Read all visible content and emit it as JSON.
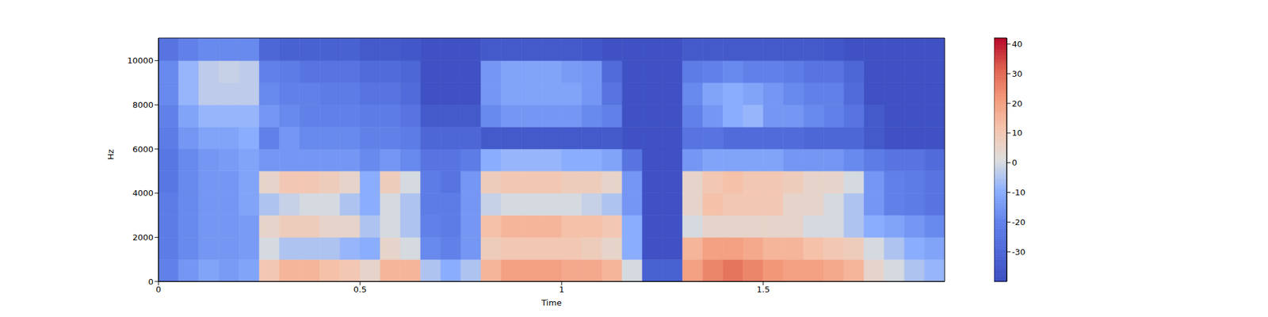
{
  "chart_data": {
    "type": "heatmap",
    "xlabel": "Time",
    "ylabel": "Hz",
    "xlim": [
      0,
      1.95
    ],
    "xticks": [
      0,
      0.5,
      1,
      1.5
    ],
    "ylim": [
      0,
      11025
    ],
    "yticks": [
      0,
      2000,
      4000,
      6000,
      8000,
      10000
    ],
    "time_edges": [
      0,
      0.05,
      0.1,
      0.15,
      0.2,
      0.25,
      0.3,
      0.35,
      0.4,
      0.45,
      0.5,
      0.55,
      0.6,
      0.65,
      0.7,
      0.75,
      0.8,
      0.85,
      0.9,
      0.95,
      1.0,
      1.05,
      1.1,
      1.15,
      1.2,
      1.25,
      1.3,
      1.35,
      1.4,
      1.45,
      1.5,
      1.55,
      1.6,
      1.65,
      1.7,
      1.75,
      1.8,
      1.85,
      1.9,
      1.95
    ],
    "freq_edges": [
      0,
      1000,
      2000,
      3000,
      4000,
      5000,
      6000,
      7000,
      8000,
      9000,
      10000,
      11025
    ],
    "cells": [
      [
        -20,
        -22,
        -22,
        -22,
        -24,
        -24,
        -22,
        -20,
        -18,
        -18,
        -25
      ],
      [
        -15,
        -18,
        -18,
        -18,
        -18,
        -18,
        -15,
        -12,
        -8,
        -8,
        -20
      ],
      [
        -12,
        -15,
        -15,
        -15,
        -15,
        -15,
        -12,
        -8,
        -3,
        -3,
        -18
      ],
      [
        -14,
        -15,
        -15,
        -15,
        -15,
        -14,
        -12,
        -8,
        -3,
        -2,
        -18
      ],
      [
        -12,
        -14,
        -14,
        -12,
        -12,
        -12,
        -10,
        -8,
        -3,
        -3,
        -18
      ],
      [
        10,
        0,
        5,
        -5,
        5,
        -15,
        -20,
        -15,
        -18,
        -20,
        -30
      ],
      [
        15,
        -5,
        8,
        -2,
        10,
        -15,
        -15,
        -18,
        -20,
        -22,
        -32
      ],
      [
        15,
        -5,
        8,
        0,
        10,
        -15,
        -18,
        -20,
        -20,
        -25,
        -32
      ],
      [
        12,
        -5,
        5,
        0,
        8,
        -15,
        -18,
        -20,
        -22,
        -25,
        -32
      ],
      [
        10,
        -8,
        5,
        -5,
        5,
        -15,
        -18,
        -20,
        -22,
        -25,
        -32
      ],
      [
        5,
        -10,
        -5,
        -10,
        -10,
        -18,
        -20,
        -22,
        -25,
        -28,
        -35
      ],
      [
        15,
        5,
        0,
        0,
        8,
        -15,
        -20,
        -22,
        -25,
        -28,
        -35
      ],
      [
        15,
        0,
        -5,
        -5,
        0,
        -18,
        -22,
        -25,
        -28,
        -30,
        -36
      ],
      [
        -5,
        -18,
        -20,
        -22,
        -22,
        -25,
        -30,
        -35,
        -38,
        -38,
        -38
      ],
      [
        -10,
        -20,
        -22,
        -22,
        -25,
        -25,
        -30,
        -35,
        -38,
        -38,
        -38
      ],
      [
        -5,
        -15,
        -15,
        -15,
        -15,
        -22,
        -30,
        -35,
        -38,
        -38,
        -38
      ],
      [
        15,
        8,
        12,
        -2,
        8,
        -10,
        -35,
        -18,
        -15,
        -15,
        -35
      ],
      [
        20,
        10,
        15,
        0,
        10,
        -8,
        -35,
        -15,
        -12,
        -12,
        -35
      ],
      [
        20,
        10,
        15,
        0,
        10,
        -8,
        -35,
        -15,
        -12,
        -12,
        -35
      ],
      [
        20,
        10,
        15,
        0,
        10,
        -8,
        -35,
        -15,
        -12,
        -12,
        -35
      ],
      [
        18,
        10,
        12,
        0,
        8,
        -10,
        -35,
        -15,
        -12,
        -14,
        -35
      ],
      [
        18,
        8,
        12,
        -2,
        8,
        -10,
        -35,
        -18,
        -15,
        -15,
        -36
      ],
      [
        15,
        5,
        10,
        -5,
        5,
        -12,
        -35,
        -20,
        -25,
        -28,
        -38
      ],
      [
        0,
        -10,
        -10,
        -15,
        -15,
        -25,
        -38,
        -38,
        -38,
        -38,
        -38
      ],
      [
        -32,
        -38,
        -38,
        -38,
        -38,
        -38,
        -38,
        -38,
        -38,
        -38,
        -38
      ],
      [
        -32,
        -38,
        -38,
        -38,
        -38,
        -38,
        -38,
        -38,
        -38,
        -38,
        -38
      ],
      [
        20,
        15,
        0,
        5,
        5,
        -15,
        -25,
        -20,
        -18,
        -22,
        -35
      ],
      [
        25,
        20,
        5,
        12,
        10,
        -12,
        -25,
        -15,
        -12,
        -20,
        -35
      ],
      [
        28,
        20,
        5,
        10,
        12,
        -12,
        -28,
        -10,
        -10,
        -18,
        -35
      ],
      [
        25,
        18,
        5,
        10,
        10,
        -12,
        -28,
        -8,
        -12,
        -20,
        -35
      ],
      [
        22,
        15,
        5,
        10,
        10,
        -12,
        -28,
        -15,
        -15,
        -20,
        -35
      ],
      [
        20,
        15,
        5,
        5,
        8,
        -15,
        -28,
        -15,
        -18,
        -22,
        -35
      ],
      [
        20,
        12,
        0,
        5,
        5,
        -15,
        -30,
        -18,
        -20,
        -25,
        -35
      ],
      [
        18,
        10,
        0,
        0,
        5,
        -15,
        -30,
        -20,
        -20,
        -25,
        -36
      ],
      [
        15,
        8,
        -5,
        -5,
        0,
        -18,
        -30,
        -25,
        -28,
        -30,
        -38
      ],
      [
        5,
        0,
        -10,
        -15,
        -15,
        -22,
        -35,
        -35,
        -38,
        -38,
        -38
      ],
      [
        0,
        -5,
        -12,
        -20,
        -20,
        -25,
        -38,
        -38,
        -38,
        -38,
        -38
      ],
      [
        -5,
        -10,
        -15,
        -22,
        -22,
        -25,
        -38,
        -38,
        -38,
        -38,
        -38
      ],
      [
        -8,
        -12,
        -18,
        -25,
        -25,
        -28,
        -38,
        -38,
        -38,
        -38,
        -38
      ]
    ],
    "colorbar": {
      "range": [
        -40,
        42
      ],
      "ticks": [
        -30,
        -20,
        -10,
        0,
        10,
        20,
        30,
        40
      ]
    }
  }
}
